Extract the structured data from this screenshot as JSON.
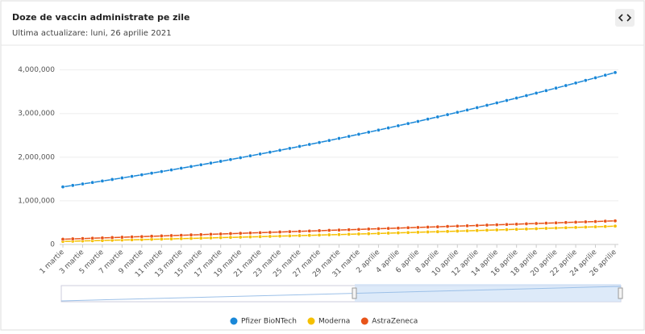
{
  "chart_data": {
    "type": "line",
    "title": "Doze de vaccin administrate pe zile",
    "subtitle": "Ultima actualizare: luni, 26 aprilie 2021",
    "categories": [
      "1 martie",
      null,
      "3 martie",
      null,
      "5 martie",
      null,
      "7 martie",
      null,
      "9 martie",
      null,
      "11 martie",
      null,
      "13 martie",
      null,
      "15 martie",
      null,
      "17 martie",
      null,
      "19 martie",
      null,
      "21 martie",
      null,
      "23 martie",
      null,
      "25 martie",
      null,
      "27 martie",
      null,
      "29 martie",
      null,
      "31 martie",
      null,
      "2 aprilie",
      null,
      "4 aprilie",
      null,
      "6 aprilie",
      null,
      "8 aprilie",
      null,
      "10 aprilie",
      null,
      "12 aprilie",
      null,
      "14 aprilie",
      null,
      "16 aprilie",
      null,
      "18 aprilie",
      null,
      "20 aprilie",
      null,
      "22 aprilie",
      null,
      "24 aprilie",
      null,
      "26 aprilie"
    ],
    "series": [
      {
        "name": "Pfizer BioNTech",
        "color": "#1a88d8",
        "values": [
          1320000,
          1353000,
          1386000,
          1420000,
          1454000,
          1489000,
          1524000,
          1560000,
          1596000,
          1633000,
          1671000,
          1708000,
          1747000,
          1786000,
          1825000,
          1865000,
          1905000,
          1946000,
          1988000,
          2030000,
          2072000,
          2115000,
          2158000,
          2202000,
          2247000,
          2292000,
          2337000,
          2383000,
          2430000,
          2477000,
          2525000,
          2573000,
          2621000,
          2670000,
          2720000,
          2770000,
          2820000,
          2872000,
          2923000,
          2975000,
          3028000,
          3081000,
          3135000,
          3189000,
          3244000,
          3299000,
          3355000,
          3411000,
          3468000,
          3525000,
          3583000,
          3641000,
          3700000,
          3759000,
          3819000,
          3879000,
          3940000
        ]
      },
      {
        "name": "Moderna",
        "color": "#f5c000",
        "values": [
          70000,
          75000,
          80000,
          85000,
          90000,
          96000,
          101000,
          106000,
          111000,
          117000,
          122000,
          128000,
          133000,
          139000,
          144000,
          150000,
          156000,
          161000,
          167000,
          173000,
          179000,
          185000,
          191000,
          197000,
          203000,
          209000,
          215000,
          221000,
          227000,
          234000,
          240000,
          246000,
          253000,
          259000,
          266000,
          272000,
          279000,
          286000,
          292000,
          299000,
          306000,
          312000,
          319000,
          326000,
          333000,
          340000,
          347000,
          354000,
          361000,
          369000,
          376000,
          383000,
          390000,
          398000,
          405000,
          412000,
          420000
        ]
      },
      {
        "name": "AstraZeneca",
        "color": "#e8541a",
        "values": [
          120000,
          128000,
          135000,
          143000,
          150000,
          158000,
          165000,
          173000,
          180000,
          188000,
          195000,
          203000,
          210000,
          218000,
          225000,
          233000,
          240000,
          248000,
          255000,
          263000,
          270000,
          278000,
          285000,
          293000,
          300000,
          308000,
          315000,
          323000,
          330000,
          338000,
          345000,
          353000,
          360000,
          368000,
          375000,
          383000,
          390000,
          398000,
          405000,
          413000,
          420000,
          428000,
          435000,
          443000,
          450000,
          458000,
          465000,
          473000,
          480000,
          488000,
          495000,
          503000,
          510000,
          518000,
          525000,
          533000,
          540000
        ]
      }
    ],
    "ylim": [
      0,
      4400000
    ],
    "yticks": [
      0,
      {
        "value": 1000000,
        "label": "1,000,000"
      },
      {
        "value": 2000000,
        "label": "2,000,000"
      },
      {
        "value": 3000000,
        "label": "3,000,000"
      },
      {
        "value": 4000000,
        "label": "4,000,000"
      }
    ],
    "grid": true
  }
}
